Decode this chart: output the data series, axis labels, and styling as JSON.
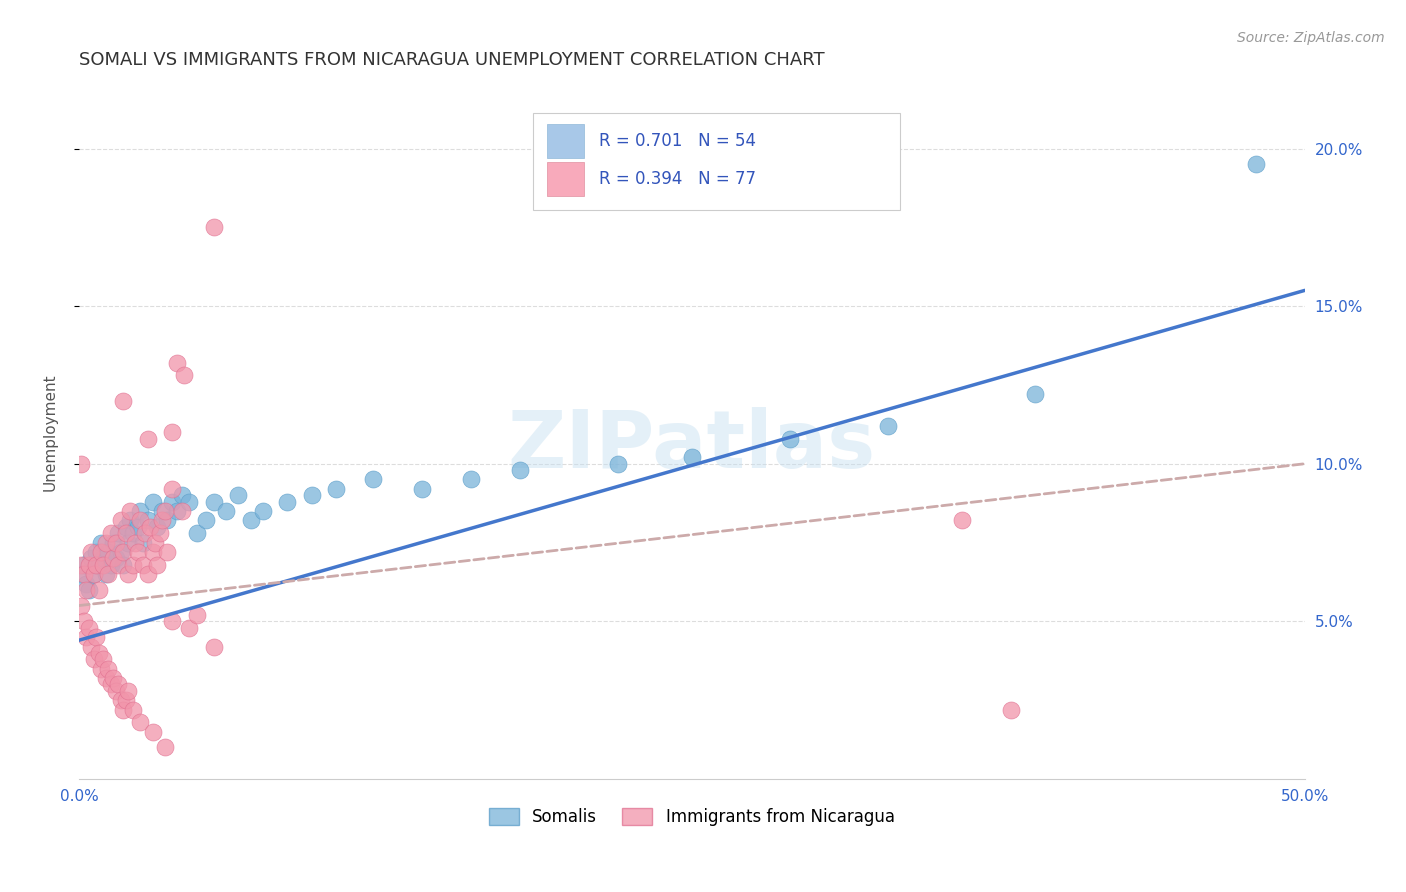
{
  "title": "SOMALI VS IMMIGRANTS FROM NICARAGUA UNEMPLOYMENT CORRELATION CHART",
  "source": "Source: ZipAtlas.com",
  "ylabel": "Unemployment",
  "xlim": [
    0.0,
    0.5
  ],
  "ylim": [
    0.0,
    0.22
  ],
  "blue_color": "#7ab3d9",
  "blue_edge_color": "#5a9dc8",
  "pink_color": "#f195aa",
  "pink_edge_color": "#e07090",
  "blue_line_color": "#4477cc",
  "pink_line_color": "#ccaaaa",
  "blue_line_slope": 0.222,
  "blue_line_intercept": 0.044,
  "pink_line_slope": 0.09,
  "pink_line_intercept": 0.055,
  "somali_points": [
    [
      0.001,
      0.065
    ],
    [
      0.002,
      0.068
    ],
    [
      0.003,
      0.062
    ],
    [
      0.004,
      0.06
    ],
    [
      0.005,
      0.07
    ],
    [
      0.006,
      0.065
    ],
    [
      0.007,
      0.072
    ],
    [
      0.008,
      0.068
    ],
    [
      0.009,
      0.075
    ],
    [
      0.01,
      0.07
    ],
    [
      0.011,
      0.065
    ],
    [
      0.012,
      0.072
    ],
    [
      0.013,
      0.068
    ],
    [
      0.014,
      0.075
    ],
    [
      0.015,
      0.07
    ],
    [
      0.016,
      0.078
    ],
    [
      0.017,
      0.072
    ],
    [
      0.018,
      0.068
    ],
    [
      0.019,
      0.08
    ],
    [
      0.02,
      0.075
    ],
    [
      0.021,
      0.082
    ],
    [
      0.022,
      0.078
    ],
    [
      0.024,
      0.08
    ],
    [
      0.025,
      0.085
    ],
    [
      0.026,
      0.075
    ],
    [
      0.028,
      0.082
    ],
    [
      0.03,
      0.088
    ],
    [
      0.032,
      0.08
    ],
    [
      0.034,
      0.085
    ],
    [
      0.036,
      0.082
    ],
    [
      0.038,
      0.088
    ],
    [
      0.04,
      0.085
    ],
    [
      0.042,
      0.09
    ],
    [
      0.045,
      0.088
    ],
    [
      0.048,
      0.078
    ],
    [
      0.052,
      0.082
    ],
    [
      0.055,
      0.088
    ],
    [
      0.06,
      0.085
    ],
    [
      0.065,
      0.09
    ],
    [
      0.07,
      0.082
    ],
    [
      0.075,
      0.085
    ],
    [
      0.085,
      0.088
    ],
    [
      0.095,
      0.09
    ],
    [
      0.105,
      0.092
    ],
    [
      0.12,
      0.095
    ],
    [
      0.14,
      0.092
    ],
    [
      0.16,
      0.095
    ],
    [
      0.18,
      0.098
    ],
    [
      0.22,
      0.1
    ],
    [
      0.25,
      0.102
    ],
    [
      0.29,
      0.108
    ],
    [
      0.33,
      0.112
    ],
    [
      0.39,
      0.122
    ],
    [
      0.48,
      0.195
    ]
  ],
  "nicaragua_points": [
    [
      0.001,
      0.068
    ],
    [
      0.002,
      0.065
    ],
    [
      0.003,
      0.06
    ],
    [
      0.004,
      0.068
    ],
    [
      0.005,
      0.072
    ],
    [
      0.006,
      0.065
    ],
    [
      0.007,
      0.068
    ],
    [
      0.008,
      0.06
    ],
    [
      0.009,
      0.072
    ],
    [
      0.01,
      0.068
    ],
    [
      0.011,
      0.075
    ],
    [
      0.012,
      0.065
    ],
    [
      0.013,
      0.078
    ],
    [
      0.014,
      0.07
    ],
    [
      0.015,
      0.075
    ],
    [
      0.016,
      0.068
    ],
    [
      0.017,
      0.082
    ],
    [
      0.018,
      0.072
    ],
    [
      0.019,
      0.078
    ],
    [
      0.02,
      0.065
    ],
    [
      0.021,
      0.085
    ],
    [
      0.022,
      0.068
    ],
    [
      0.023,
      0.075
    ],
    [
      0.024,
      0.072
    ],
    [
      0.025,
      0.082
    ],
    [
      0.026,
      0.068
    ],
    [
      0.027,
      0.078
    ],
    [
      0.028,
      0.065
    ],
    [
      0.029,
      0.08
    ],
    [
      0.03,
      0.072
    ],
    [
      0.031,
      0.075
    ],
    [
      0.032,
      0.068
    ],
    [
      0.033,
      0.078
    ],
    [
      0.034,
      0.082
    ],
    [
      0.035,
      0.085
    ],
    [
      0.036,
      0.072
    ],
    [
      0.038,
      0.092
    ],
    [
      0.04,
      0.132
    ],
    [
      0.042,
      0.085
    ],
    [
      0.043,
      0.128
    ],
    [
      0.001,
      0.055
    ],
    [
      0.002,
      0.05
    ],
    [
      0.003,
      0.045
    ],
    [
      0.004,
      0.048
    ],
    [
      0.005,
      0.042
    ],
    [
      0.006,
      0.038
    ],
    [
      0.007,
      0.045
    ],
    [
      0.008,
      0.04
    ],
    [
      0.009,
      0.035
    ],
    [
      0.01,
      0.038
    ],
    [
      0.011,
      0.032
    ],
    [
      0.012,
      0.035
    ],
    [
      0.013,
      0.03
    ],
    [
      0.014,
      0.032
    ],
    [
      0.015,
      0.028
    ],
    [
      0.016,
      0.03
    ],
    [
      0.017,
      0.025
    ],
    [
      0.018,
      0.022
    ],
    [
      0.019,
      0.025
    ],
    [
      0.02,
      0.028
    ],
    [
      0.022,
      0.022
    ],
    [
      0.025,
      0.018
    ],
    [
      0.03,
      0.015
    ],
    [
      0.035,
      0.01
    ],
    [
      0.038,
      0.05
    ],
    [
      0.045,
      0.048
    ],
    [
      0.055,
      0.175
    ],
    [
      0.001,
      0.1
    ],
    [
      0.018,
      0.12
    ],
    [
      0.028,
      0.108
    ],
    [
      0.038,
      0.11
    ],
    [
      0.048,
      0.052
    ],
    [
      0.055,
      0.042
    ],
    [
      0.36,
      0.082
    ],
    [
      0.38,
      0.022
    ]
  ],
  "background_color": "#ffffff",
  "grid_color": "#dddddd",
  "title_fontsize": 13,
  "axis_label_fontsize": 11,
  "tick_fontsize": 11,
  "source_fontsize": 10
}
